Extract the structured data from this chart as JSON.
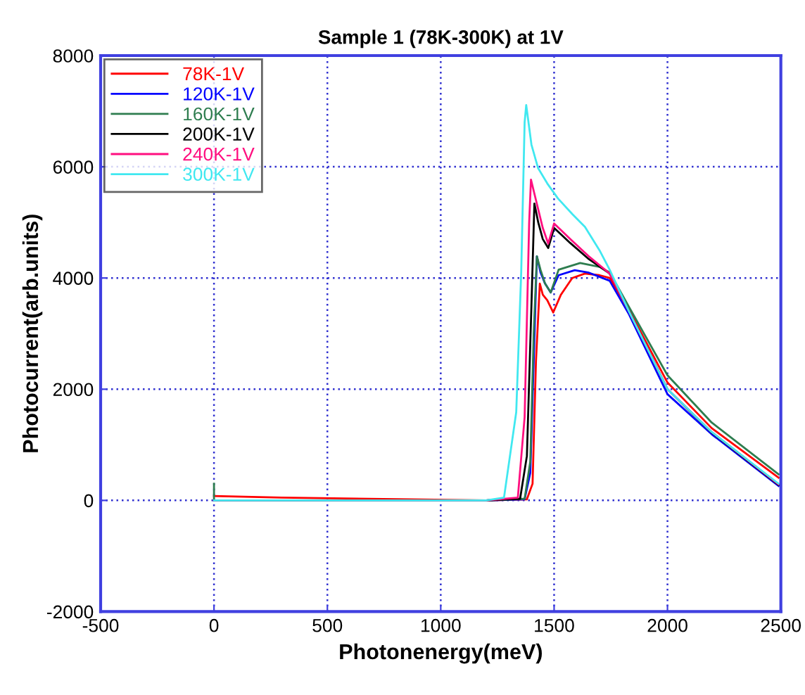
{
  "chart_data": {
    "type": "line",
    "title": "Sample 1 (78K-300K) at 1V",
    "xlabel": "Photonenergy(meV)",
    "ylabel": "Photocurrent(arb.units)",
    "xlim": [
      -500,
      2500
    ],
    "xticks": [
      -500,
      0,
      500,
      1000,
      1500,
      2000,
      2500
    ],
    "ylim": [
      -2000,
      8000
    ],
    "yticks": [
      -2000,
      0,
      2000,
      4000,
      6000,
      8000
    ],
    "grid": true,
    "legend": "top left",
    "marker": "none",
    "line_style": "solid",
    "series": [
      {
        "name": "78K-1V",
        "color": "#ff0000",
        "x": [
          0,
          300,
          1200,
          1380,
          1405,
          1420,
          1437,
          1450,
          1470,
          1496,
          1530,
          1580,
          1636,
          1700,
          1745,
          1830,
          2000,
          2195,
          2490
        ],
        "values": [
          80,
          50,
          0,
          20,
          300,
          2500,
          3900,
          3700,
          3600,
          3380,
          3700,
          4000,
          4080,
          4050,
          4000,
          3430,
          2120,
          1300,
          410
        ]
      },
      {
        "name": "120K-1V",
        "color": "#0000ff",
        "x": [
          0,
          1200,
          1370,
          1395,
          1410,
          1424,
          1440,
          1460,
          1485,
          1520,
          1591,
          1650,
          1745,
          1830,
          2000,
          2195,
          2490
        ],
        "values": [
          0,
          0,
          20,
          500,
          2500,
          4390,
          4100,
          3900,
          3740,
          4050,
          4140,
          4100,
          3950,
          3350,
          1910,
          1190,
          260
        ]
      },
      {
        "name": "160K-1V",
        "color": "#2e7d4f",
        "x": [
          0,
          0,
          10,
          1200,
          1370,
          1395,
          1410,
          1424,
          1440,
          1460,
          1485,
          1520,
          1615,
          1700,
          1745,
          1830,
          2000,
          2195,
          2490
        ],
        "values": [
          300,
          0,
          0,
          0,
          30,
          700,
          3000,
          4390,
          4150,
          3900,
          3740,
          4150,
          4270,
          4200,
          4100,
          3480,
          2250,
          1400,
          470
        ]
      },
      {
        "name": "200K-1V",
        "color": "#000000",
        "x": [
          0,
          1200,
          1350,
          1380,
          1400,
          1413,
          1430,
          1450,
          1474,
          1500,
          1571,
          1650,
          1745,
          1830,
          2000,
          2195,
          2490
        ],
        "values": [
          0,
          0,
          30,
          800,
          3500,
          5340,
          5000,
          4700,
          4540,
          4900,
          4630,
          4350,
          4080,
          3400,
          2000,
          1220,
          280
        ]
      },
      {
        "name": "240K-1V",
        "color": "#ff0f7f",
        "x": [
          0,
          1200,
          1340,
          1370,
          1390,
          1398,
          1420,
          1450,
          1474,
          1500,
          1571,
          1650,
          1745,
          1830,
          2000,
          2195,
          2490
        ],
        "values": [
          0,
          0,
          50,
          1500,
          5000,
          5770,
          5400,
          4900,
          4620,
          4980,
          4700,
          4400,
          4080,
          3400,
          2000,
          1230,
          290
        ]
      },
      {
        "name": "300K-1V",
        "color": "#40e8f0",
        "x": [
          0,
          1200,
          1279,
          1333,
          1355,
          1370,
          1377,
          1400,
          1429,
          1470,
          1517,
          1580,
          1636,
          1700,
          1745,
          1830,
          2000,
          2195,
          2490
        ],
        "values": [
          0,
          0,
          50,
          1590,
          4120,
          6800,
          7110,
          6400,
          5980,
          5700,
          5430,
          5150,
          4920,
          4500,
          4150,
          3400,
          2000,
          1230,
          300
        ]
      }
    ]
  }
}
